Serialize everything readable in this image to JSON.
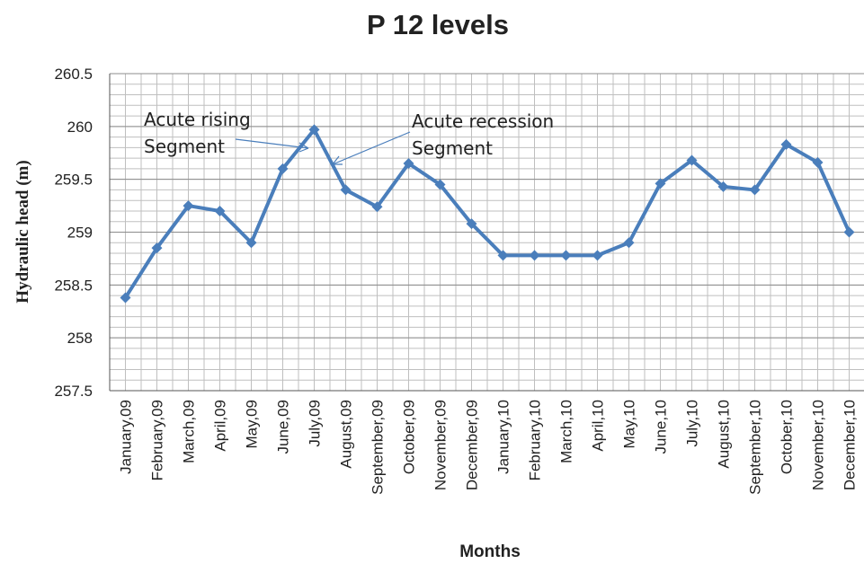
{
  "chart_data": {
    "type": "line",
    "title": "P 12 levels",
    "x_label": "Months",
    "y_label": "Hydraulic head (m)",
    "categories": [
      "January,09",
      "February,09",
      "March,09",
      "April,09",
      "May,09",
      "June,09",
      "July,09",
      "August,09",
      "September,09",
      "October,09",
      "November,09",
      "December,09",
      "January,10",
      "February,10",
      "March,10",
      "April,10",
      "May,10",
      "June,10",
      "July,10",
      "August,10",
      "September,10",
      "October,10",
      "November,10",
      "December,10"
    ],
    "values": [
      258.38,
      258.85,
      259.25,
      259.2,
      258.9,
      259.6,
      259.97,
      259.4,
      259.24,
      259.65,
      259.45,
      259.08,
      258.78,
      258.78,
      258.78,
      258.78,
      258.9,
      259.46,
      259.68,
      259.43,
      259.4,
      259.83,
      259.66,
      259.0
    ],
    "color": "#4a7ebb",
    "ylim": [
      257.5,
      260.5
    ],
    "yticks": [
      257.5,
      258,
      258.5,
      259,
      259.5,
      260,
      260.5
    ],
    "grid": true,
    "annotations": [
      {
        "lines": [
          "Acute rising",
          "Segment"
        ]
      },
      {
        "lines": [
          "Acute recession",
          "Segment"
        ]
      }
    ]
  }
}
